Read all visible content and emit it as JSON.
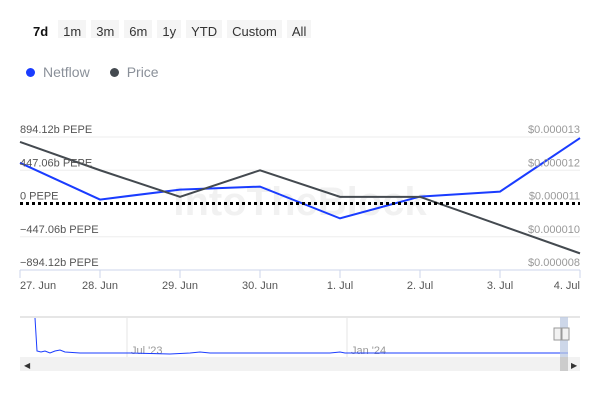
{
  "range_buttons": [
    {
      "label": "7d",
      "active": true
    },
    {
      "label": "1m"
    },
    {
      "label": "3m"
    },
    {
      "label": "6m"
    },
    {
      "label": "1y"
    },
    {
      "label": "YTD"
    },
    {
      "label": "Custom"
    },
    {
      "label": "All"
    }
  ],
  "watermark": "IntoTheBlock",
  "chart_data": {
    "type": "line",
    "categories": [
      "27. Jun",
      "28. Jun",
      "29. Jun",
      "30. Jun",
      "1. Jul",
      "2. Jul",
      "3. Jul",
      "4. Jul"
    ],
    "series": [
      {
        "name": "Netflow",
        "axis": "left",
        "color": "#1a3cff",
        "unit": "b PEPE",
        "values": [
          547,
          53,
          187,
          227,
          -200,
          93,
          160,
          880
        ]
      },
      {
        "name": "Price",
        "axis": "right",
        "color": "#444a50",
        "unit": "USD",
        "values": [
          1.285e-05,
          1.2e-05,
          1.12e-05,
          1.2e-05,
          1.12e-05,
          1.12e-05,
          1.035e-05,
          9.5e-06
        ]
      }
    ],
    "left_axis": {
      "ticks": [
        894.12,
        447.06,
        0,
        -447.06,
        -894.12
      ],
      "tick_labels": [
        "894.12b PEPE",
        "447.06b PEPE",
        "0 PEPE",
        "−447.06b PEPE",
        "−894.12b PEPE"
      ],
      "range": [
        -894.12,
        894.12
      ]
    },
    "right_axis": {
      "tick_labels": [
        "$0.000013",
        "$0.000012",
        "$0.000011",
        "$0.000010",
        "$0.000008"
      ],
      "range": [
        9e-06,
        1.3e-05
      ]
    },
    "zero_line": "dotted",
    "grid": true,
    "legend_placement": "top-left",
    "navigator": {
      "labels": [
        "Jul '23",
        "Jan '24"
      ]
    }
  }
}
